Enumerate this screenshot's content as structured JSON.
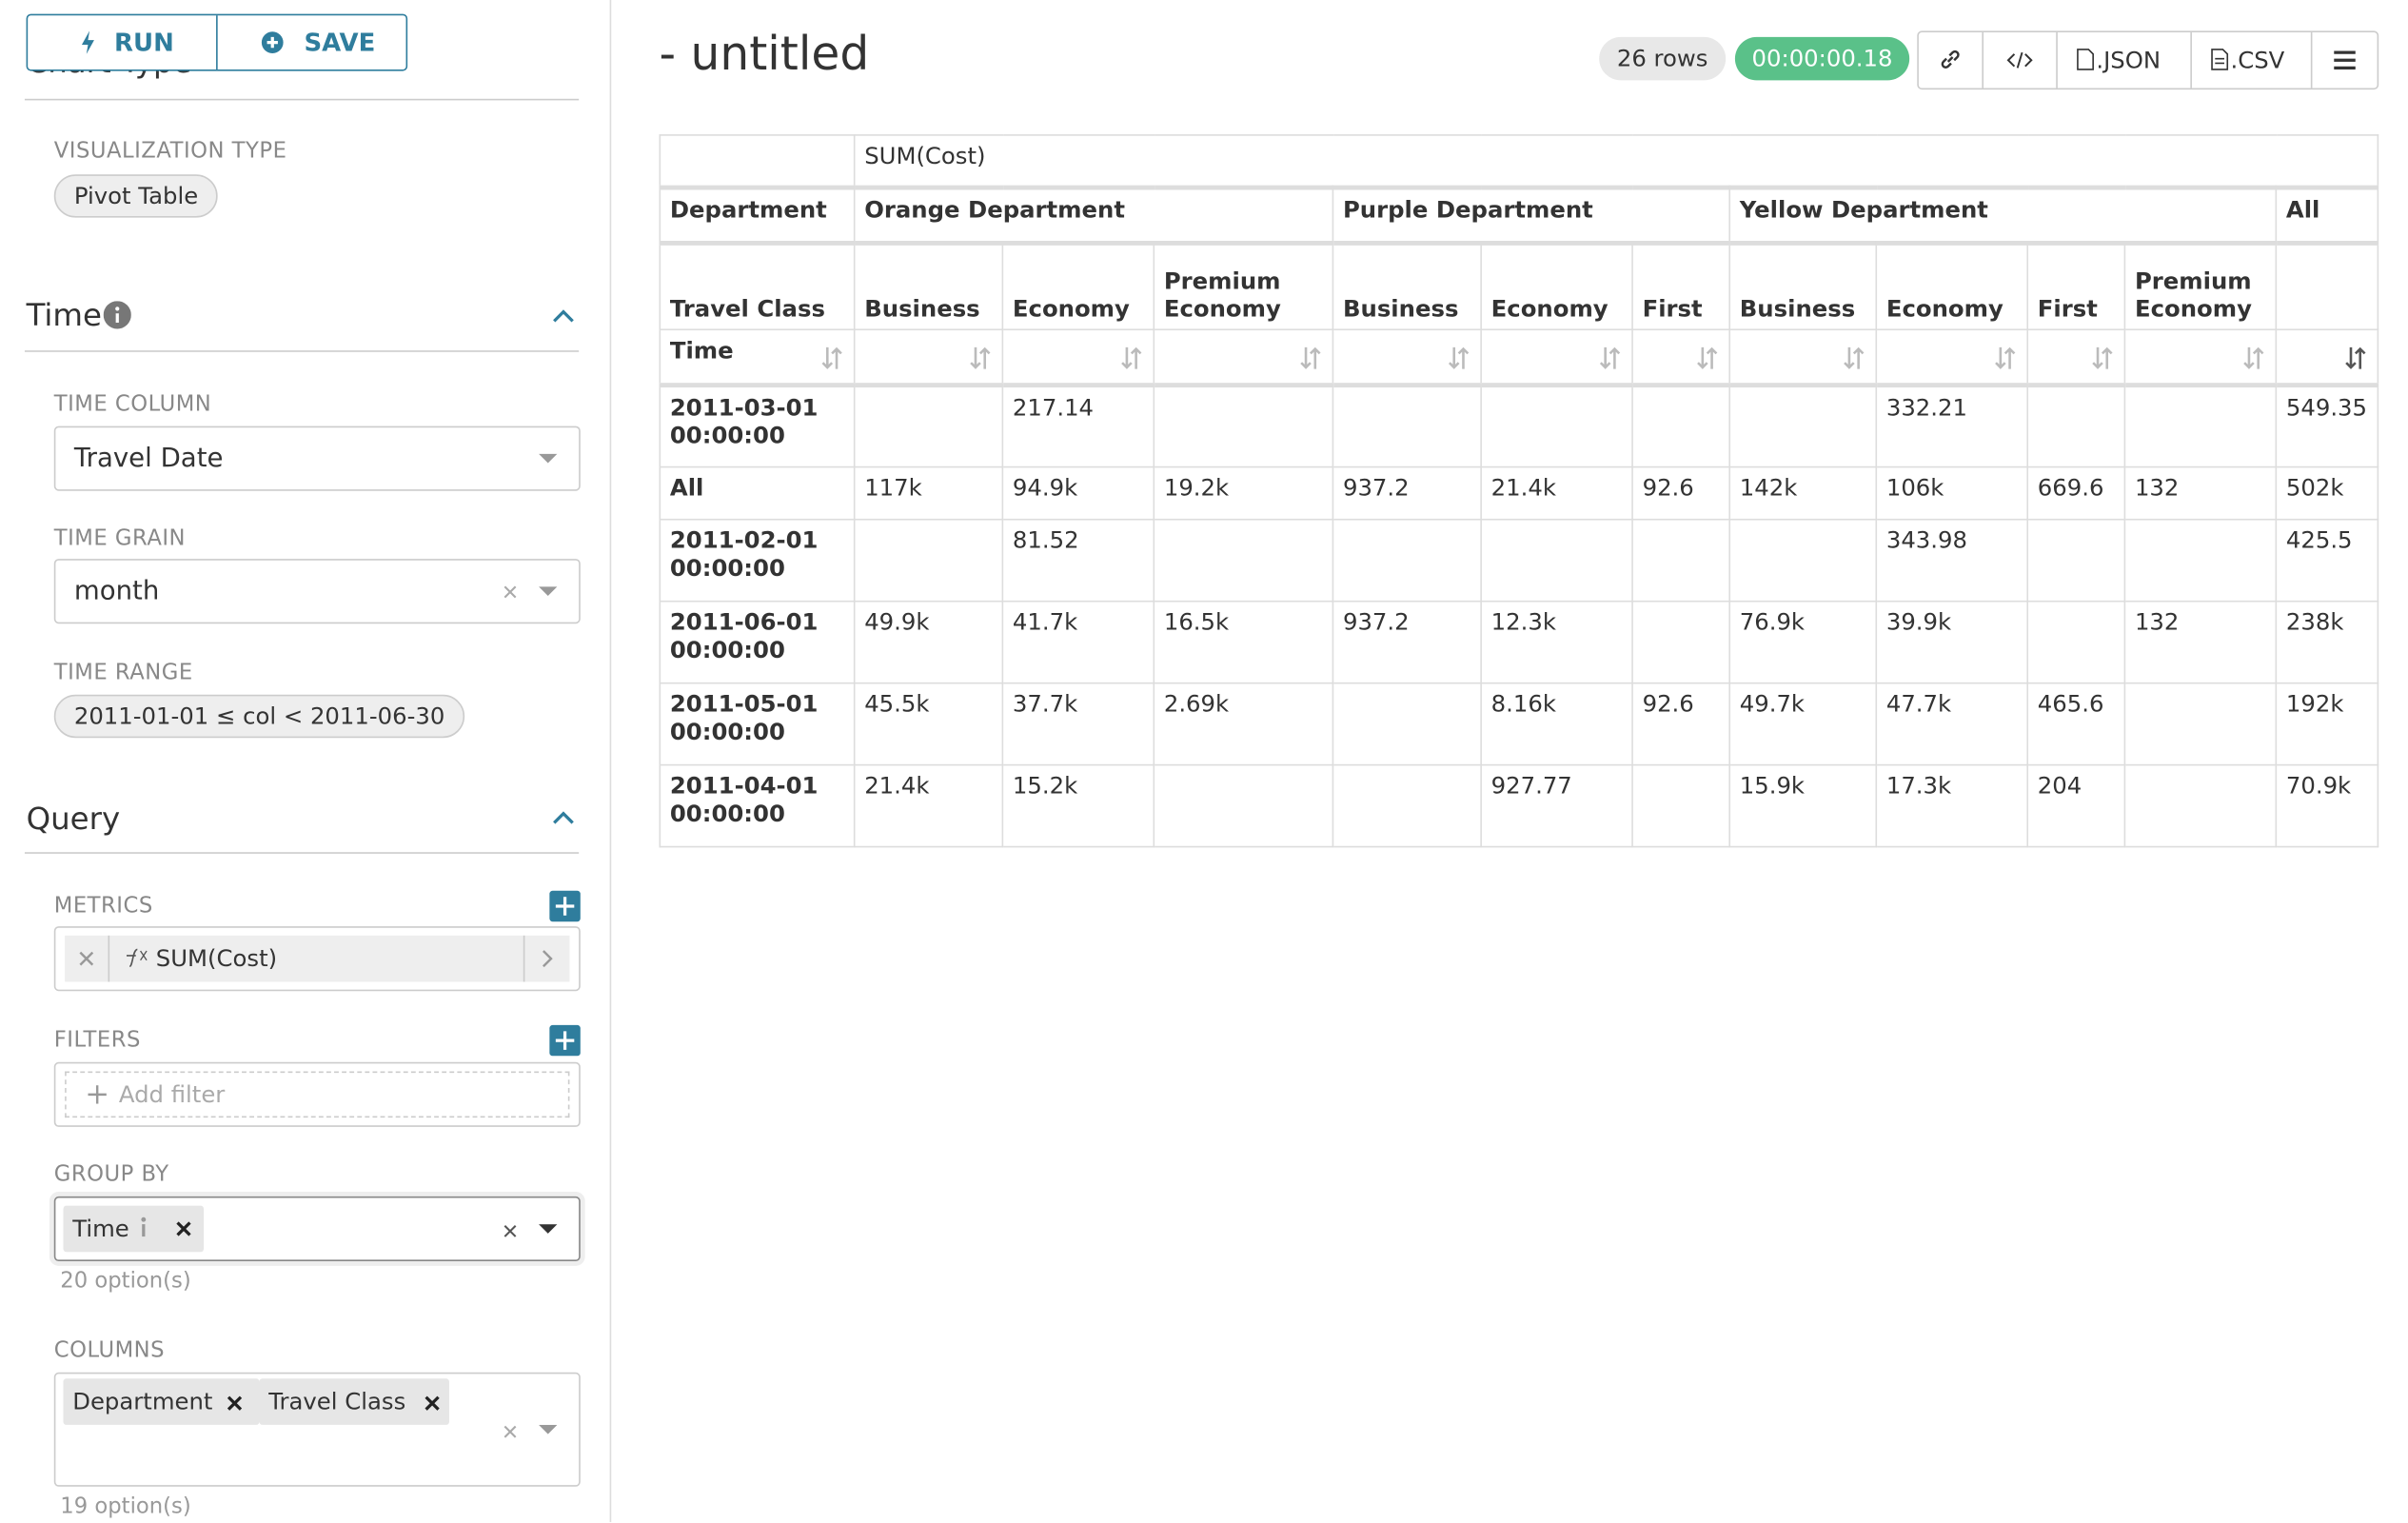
{
  "toolbar": {
    "run": "RUN",
    "save": "SAVE"
  },
  "sidebar": {
    "chart_type": {
      "title": "Chart Type",
      "visualization_type_label": "VISUALIZATION TYPE",
      "visualization_type": "Pivot Table"
    },
    "time": {
      "title": "Time",
      "time_column_label": "TIME COLUMN",
      "time_column": "Travel Date",
      "time_grain_label": "TIME GRAIN",
      "time_grain": "month",
      "time_range_label": "TIME RANGE",
      "time_range": "2011-01-01 ≤ col < 2011-06-30"
    },
    "query": {
      "title": "Query",
      "metrics_label": "METRICS",
      "metrics": [
        "SUM(Cost)"
      ],
      "filters_label": "FILTERS",
      "filters_placeholder": "Add filter",
      "group_by_label": "GROUP BY",
      "group_by": [
        "Time"
      ],
      "group_by_options": "20 option(s)",
      "columns_label": "COLUMNS",
      "columns": [
        "Department",
        "Travel Class"
      ],
      "columns_options": "19 option(s)"
    }
  },
  "header": {
    "title": "- untitled",
    "row_count": "26 rows",
    "duration": "00:00:00.18",
    "json_button": ".JSON",
    "csv_button": ".CSV"
  },
  "table": {
    "metric": "SUM(Cost)",
    "column_header_1": "Department",
    "column_header_2": "Travel Class",
    "row_header": "Time",
    "departments": [
      {
        "name": "Orange Department",
        "span": 3
      },
      {
        "name": "Purple Department",
        "span": 3
      },
      {
        "name": "Yellow Department",
        "span": 4
      },
      {
        "name": "All",
        "span": 1
      }
    ],
    "classes": [
      "Business",
      "Economy",
      "Premium Economy",
      "Business",
      "Economy",
      "First",
      "Business",
      "Economy",
      "First",
      "Premium Economy",
      null
    ],
    "rows": [
      {
        "time": "2011-03-01 00:00:00",
        "cells": [
          null,
          "217.14",
          null,
          null,
          null,
          null,
          null,
          "332.21",
          null,
          null,
          "549.35"
        ]
      },
      {
        "time": "All",
        "cells": [
          "117k",
          "94.9k",
          "19.2k",
          "937.2",
          "21.4k",
          "92.6",
          "142k",
          "106k",
          "669.6",
          "132",
          "502k"
        ]
      },
      {
        "time": "2011-02-01 00:00:00",
        "cells": [
          null,
          "81.52",
          null,
          null,
          null,
          null,
          null,
          "343.98",
          null,
          null,
          "425.5"
        ]
      },
      {
        "time": "2011-06-01 00:00:00",
        "cells": [
          "49.9k",
          "41.7k",
          "16.5k",
          "937.2",
          "12.3k",
          null,
          "76.9k",
          "39.9k",
          null,
          "132",
          "238k"
        ]
      },
      {
        "time": "2011-05-01 00:00:00",
        "cells": [
          "45.5k",
          "37.7k",
          "2.69k",
          null,
          "8.16k",
          "92.6",
          "49.7k",
          "47.7k",
          "465.6",
          null,
          "192k"
        ]
      },
      {
        "time": "2011-04-01 00:00:00",
        "cells": [
          "21.4k",
          "15.2k",
          null,
          null,
          "927.77",
          null,
          "15.9k",
          "17.3k",
          "204",
          null,
          "70.9k"
        ]
      }
    ]
  }
}
